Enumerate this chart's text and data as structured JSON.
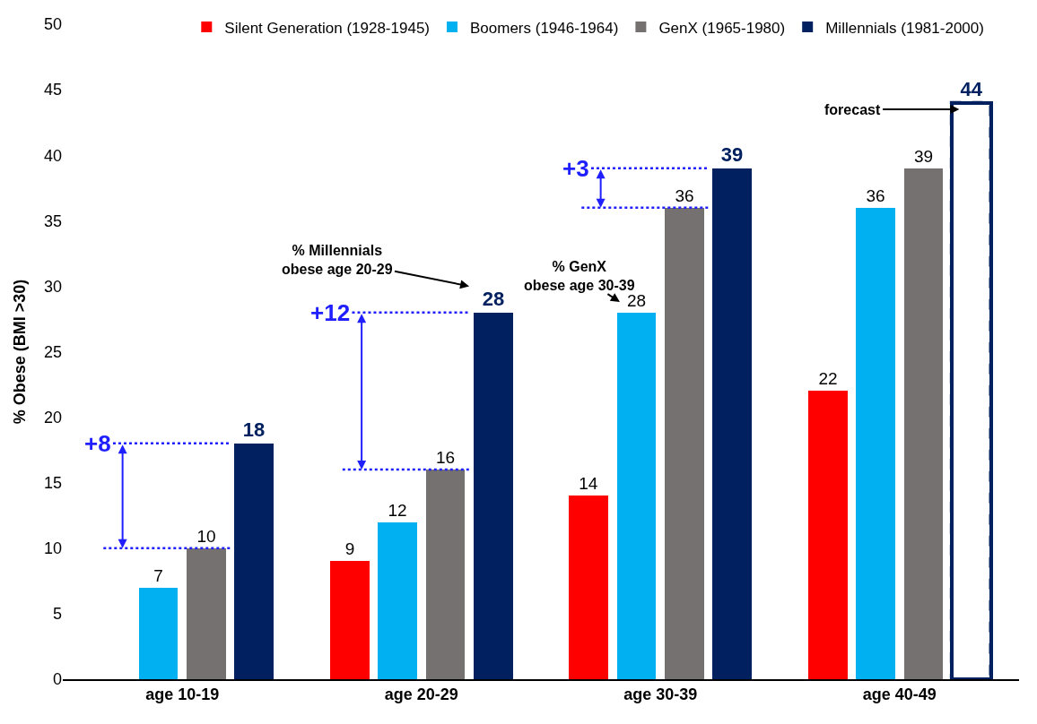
{
  "chart_data": {
    "type": "bar",
    "ylabel": "% Obese (BMI >30)",
    "categories": [
      "age 10-19",
      "age 20-29",
      "age 30-39",
      "age 40-49"
    ],
    "series": [
      {
        "name": "Silent Generation (1928-1945)",
        "color": "#ff0000",
        "values": [
          null,
          9,
          14,
          22
        ]
      },
      {
        "name": "Boomers (1946-1964)",
        "color": "#00b0f0",
        "values": [
          7,
          12,
          28,
          36
        ]
      },
      {
        "name": "GenX (1965-1980)",
        "color": "#767171",
        "values": [
          10,
          16,
          36,
          39
        ]
      },
      {
        "name": "Millennials (1981-2000)",
        "color": "#002060",
        "values": [
          18,
          28,
          39,
          null
        ]
      },
      {
        "color": "#002060",
        "line_style": "dashed",
        "values": [
          null,
          null,
          null,
          44
        ]
      }
    ],
    "ylim": [
      0,
      50
    ],
    "yticks": [
      0,
      5,
      10,
      15,
      20,
      25,
      30,
      35,
      40,
      45,
      50
    ],
    "data_labels": true,
    "legend": "top",
    "annotations": [
      "+8",
      "+12",
      "+3",
      "% Millennials obese age 20-29",
      "% GenX obese age 30-39",
      "forecast"
    ]
  }
}
